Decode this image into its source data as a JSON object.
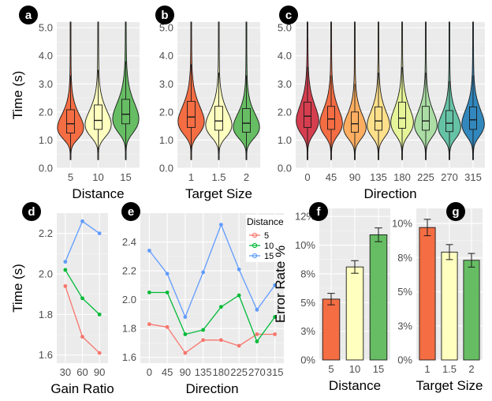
{
  "figure": {
    "panel_badges": [
      "a",
      "b",
      "c",
      "d",
      "e",
      "f",
      "g"
    ]
  },
  "chart_data": [
    {
      "panel": "a",
      "type": "violin",
      "xlabel": "Distance",
      "ylabel": "Time (s)",
      "ylim": [
        0,
        5.2
      ],
      "yticks": [
        "0.0",
        "1.0",
        "2.0",
        "3.0",
        "4.0",
        "5.0"
      ],
      "categories": [
        "5",
        "10",
        "15"
      ],
      "colors": [
        "#f46d43",
        "#ffffbf",
        "#66bd63"
      ],
      "medians": [
        1.58,
        1.7,
        1.92
      ],
      "q1": [
        1.25,
        1.38,
        1.58
      ],
      "q3": [
        2.08,
        2.25,
        2.45
      ],
      "whisker_low": [
        0.5,
        0.55,
        0.6
      ],
      "whisker_high": [
        3.3,
        3.5,
        3.8
      ],
      "grid": true
    },
    {
      "panel": "b",
      "type": "violin",
      "xlabel": "Target Size",
      "ylabel": "",
      "ylim": [
        0,
        5.2
      ],
      "yticks": [
        "0.0",
        "1.0",
        "2.0",
        "3.0",
        "4.0",
        "5.0"
      ],
      "categories": [
        "1",
        "1.5",
        "2"
      ],
      "colors": [
        "#f46d43",
        "#ffffbf",
        "#66bd63"
      ],
      "medians": [
        1.82,
        1.68,
        1.6
      ],
      "q1": [
        1.45,
        1.35,
        1.28
      ],
      "q3": [
        2.38,
        2.2,
        2.12
      ],
      "whisker_low": [
        0.55,
        0.5,
        0.5
      ],
      "whisker_high": [
        3.7,
        3.4,
        3.3
      ],
      "grid": true
    },
    {
      "panel": "c",
      "type": "violin",
      "xlabel": "Direction",
      "ylabel": "",
      "ylim": [
        0,
        5.2
      ],
      "yticks": [
        "0.0",
        "1.0",
        "2.0",
        "3.0",
        "4.0",
        "5.0"
      ],
      "categories": [
        "0",
        "45",
        "90",
        "135",
        "180",
        "225",
        "270",
        "315"
      ],
      "colors": [
        "#d53e4f",
        "#f46d43",
        "#fdae61",
        "#fee08b",
        "#e6f598",
        "#abdda4",
        "#66c2a5",
        "#3288bd"
      ],
      "medians": [
        1.85,
        1.75,
        1.58,
        1.68,
        1.78,
        1.68,
        1.6,
        1.72
      ],
      "q1": [
        1.45,
        1.38,
        1.28,
        1.35,
        1.42,
        1.35,
        1.3,
        1.38
      ],
      "q3": [
        2.35,
        2.2,
        2.0,
        2.18,
        2.35,
        2.2,
        2.05,
        2.18
      ],
      "whisker_low": [
        0.6,
        0.55,
        0.5,
        0.55,
        0.6,
        0.55,
        0.5,
        0.55
      ],
      "whisker_high": [
        3.6,
        3.3,
        3.0,
        3.4,
        3.6,
        3.4,
        3.1,
        3.3
      ],
      "grid": true
    },
    {
      "panel": "d",
      "type": "line",
      "xlabel": "Gain Ratio",
      "ylabel": "Time (s)",
      "x": [
        "30",
        "60",
        "90"
      ],
      "ylim": [
        1.56,
        2.3
      ],
      "yticks": [
        1.6,
        1.8,
        2.0,
        2.2
      ],
      "ytick_labels": [
        "1.6",
        "1.8",
        "2.0",
        "2.2"
      ],
      "series": [
        {
          "key": "5",
          "color": "#f8766d",
          "values": [
            1.94,
            1.69,
            1.61
          ]
        },
        {
          "key": "10",
          "color": "#00ba38",
          "values": [
            2.02,
            1.88,
            1.8
          ]
        },
        {
          "key": "15",
          "color": "#619cff",
          "values": [
            2.06,
            2.26,
            2.2
          ]
        }
      ],
      "grid": true
    },
    {
      "panel": "e",
      "type": "line",
      "xlabel": "Direction",
      "ylabel": "",
      "x": [
        "0",
        "45",
        "90",
        "135",
        "180",
        "225",
        "270",
        "315"
      ],
      "ylim": [
        1.56,
        2.6
      ],
      "yticks": [
        1.6,
        1.8,
        2.0,
        2.2,
        2.4
      ],
      "ytick_labels": [
        "1.6",
        "1.8",
        "2.0",
        "2.2",
        "2.4"
      ],
      "legend_title": "Distance",
      "legend_position": "top-right",
      "series": [
        {
          "name": "5",
          "color": "#f8766d",
          "values": [
            1.83,
            1.81,
            1.63,
            1.72,
            1.72,
            1.68,
            1.76,
            1.76
          ]
        },
        {
          "name": "10",
          "color": "#00ba38",
          "values": [
            2.05,
            2.05,
            1.76,
            1.79,
            1.95,
            2.03,
            1.71,
            1.88
          ]
        },
        {
          "name": "15",
          "color": "#619cff",
          "values": [
            2.34,
            2.18,
            1.88,
            2.19,
            2.52,
            2.21,
            1.93,
            2.1
          ]
        }
      ],
      "grid": true
    },
    {
      "panel": "f",
      "type": "bar",
      "xlabel": "Distance",
      "ylabel": "Error Rate %",
      "categories": [
        "5",
        "10",
        "15"
      ],
      "values": [
        5.3,
        8.1,
        10.9
      ],
      "errors": [
        0.5,
        0.55,
        0.6
      ],
      "colors": [
        "#f46d43",
        "#ffffbf",
        "#66bd63"
      ],
      "ylim": [
        0,
        13.2
      ],
      "yticks": [
        0,
        2.5,
        5,
        7.5,
        10,
        12.5
      ],
      "ytick_labels": [
        "0%",
        "3%",
        "5%",
        "8%",
        "10%",
        "12%"
      ],
      "grid": true
    },
    {
      "panel": "g",
      "type": "bar",
      "xlabel": "Target Size",
      "ylabel": "",
      "categories": [
        "1",
        "1.5",
        "2"
      ],
      "values": [
        9.7,
        7.9,
        7.3
      ],
      "errors": [
        0.6,
        0.55,
        0.5
      ],
      "colors": [
        "#f46d43",
        "#ffffbf",
        "#66bd63"
      ],
      "ylim": [
        0,
        11.1
      ],
      "yticks": [
        0,
        2.5,
        5,
        7.5,
        10
      ],
      "ytick_labels": [
        "0%",
        "3%",
        "5%",
        "8%",
        "10%"
      ],
      "grid": true
    }
  ]
}
